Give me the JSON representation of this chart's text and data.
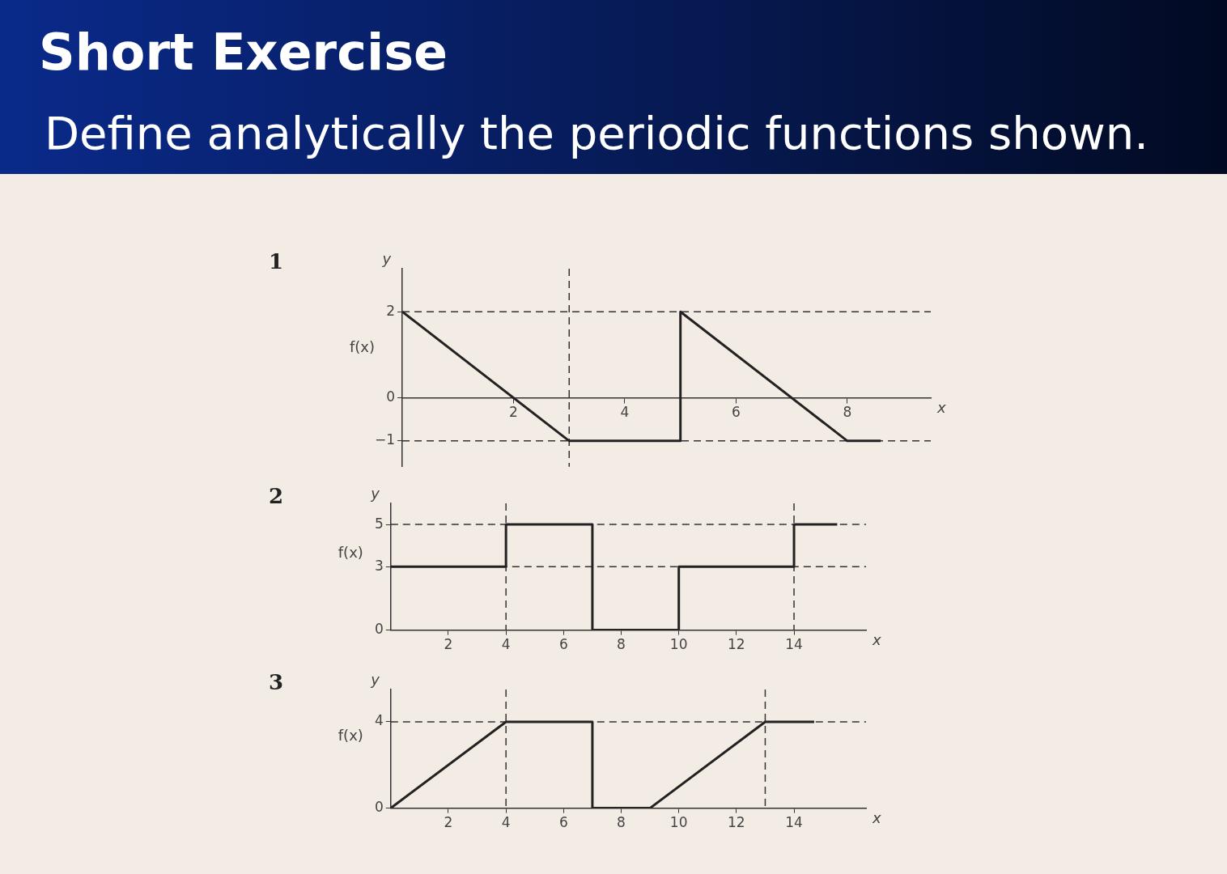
{
  "chart_data": [
    {
      "type": "line",
      "title": "Short Exercise",
      "subtitle": "Define analytically the periodic functions shown.",
      "xlabel": "x",
      "ylabel": "y",
      "annotations": [
        "1",
        "f(x)"
      ],
      "marker": "none",
      "line_style": "solid",
      "grid": false,
      "legend": false,
      "series": [
        {
          "color": "#222222",
          "x": [
            0,
            3,
            5,
            5,
            8,
            8.6
          ],
          "values": [
            2,
            -1,
            -1,
            2,
            -1,
            -1
          ]
        }
      ],
      "xlim": [
        0,
        9.5
      ],
      "xticks": [
        2,
        4,
        6,
        8
      ],
      "ylim": [
        -1.6,
        3
      ],
      "yticks": [
        -1,
        0,
        2
      ],
      "ref_lines": [
        {
          "axis": "y",
          "value": 2,
          "line_style": "dashed",
          "color": "#333333"
        },
        {
          "axis": "y",
          "value": -1,
          "line_style": "dashed",
          "color": "#333333"
        },
        {
          "axis": "x",
          "value": 3,
          "line_style": "dashed",
          "color": "#333333"
        }
      ]
    },
    {
      "type": "line",
      "xlabel": "x",
      "ylabel": "y",
      "annotations": [
        "2",
        "f(x)"
      ],
      "marker": "none",
      "line_style": "solid",
      "grid": false,
      "legend": false,
      "series": [
        {
          "color": "#222222",
          "x": [
            0,
            4,
            4,
            7,
            7,
            10,
            10,
            14,
            14,
            15.5
          ],
          "values": [
            3,
            3,
            5,
            5,
            0,
            0,
            3,
            3,
            5,
            5
          ]
        }
      ],
      "xlim": [
        0,
        16.5
      ],
      "xticks": [
        2,
        4,
        6,
        8,
        10,
        12,
        14
      ],
      "ylim": [
        0,
        6
      ],
      "yticks": [
        0,
        3,
        5
      ],
      "ref_lines": [
        {
          "axis": "y",
          "value": 5,
          "line_style": "dashed",
          "color": "#333333"
        },
        {
          "axis": "y",
          "value": 3,
          "line_style": "dashed",
          "color": "#333333"
        },
        {
          "axis": "x",
          "value": 4,
          "line_style": "dashed",
          "color": "#333333"
        },
        {
          "axis": "x",
          "value": 14,
          "line_style": "dashed",
          "color": "#333333"
        }
      ]
    },
    {
      "type": "line",
      "xlabel": "x",
      "ylabel": "y",
      "annotations": [
        "3",
        "f(x)"
      ],
      "marker": "none",
      "line_style": "solid",
      "grid": false,
      "legend": false,
      "series": [
        {
          "color": "#222222",
          "x": [
            0,
            4,
            7,
            7,
            9,
            13,
            14.7
          ],
          "values": [
            0,
            4,
            4,
            0,
            0,
            4,
            4
          ]
        }
      ],
      "xlim": [
        0,
        16.5
      ],
      "xticks": [
        2,
        4,
        6,
        8,
        10,
        12,
        14
      ],
      "ylim": [
        0,
        5.5
      ],
      "yticks": [
        0,
        4
      ],
      "ref_lines": [
        {
          "axis": "y",
          "value": 4,
          "line_style": "dashed",
          "color": "#333333"
        },
        {
          "axis": "x",
          "value": 4,
          "line_style": "dashed",
          "color": "#333333"
        },
        {
          "axis": "x",
          "value": 13,
          "line_style": "dashed",
          "color": "#333333"
        }
      ]
    }
  ]
}
